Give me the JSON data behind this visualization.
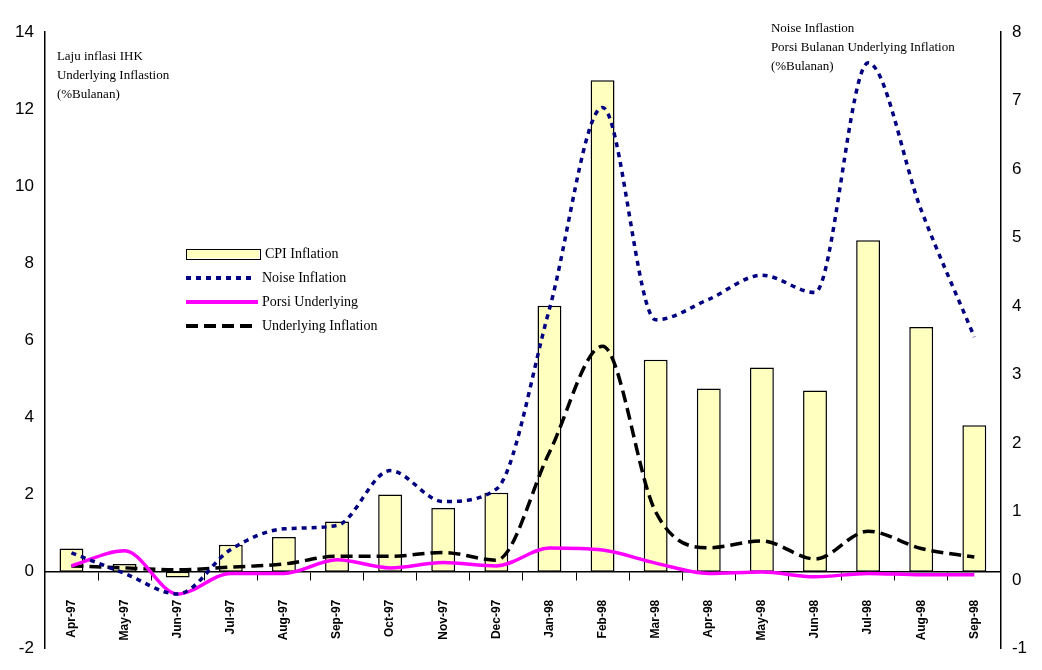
{
  "chart_data": {
    "type": "bar",
    "ylabel": "Laju inflasi IHK\nUnderlying Inflastion\n(%Bulanan)",
    "y2label": "Noise Inflastion\nPorsi Bulanan Underlying Inflation\n(%Bulanan)",
    "categories": [
      "Apr-97",
      "May-97",
      "Jun-97",
      "Jul-97",
      "Aug-97",
      "Sep-97",
      "Oct-97",
      "Nov-97",
      "Dec-97",
      "Jan-98",
      "Feb-98",
      "Mar-98",
      "Apr-98",
      "May-98",
      "Jun-98",
      "Jul-98",
      "Aug-98",
      "Sep-98"
    ],
    "series": [
      {
        "name": "CPI Inflation",
        "type": "bar",
        "color": "#ffffc0",
        "values": [
          0.6,
          0.2,
          -0.15,
          0.7,
          0.9,
          1.3,
          2.0,
          1.65,
          2.05,
          6.9,
          12.75,
          5.5,
          4.75,
          5.3,
          4.7,
          8.6,
          6.35,
          3.8
        ]
      },
      {
        "name": "Noise Inflation",
        "type": "line",
        "axis": "y2",
        "color": "#000080",
        "line_style": "dotted",
        "values": [
          0.4,
          0.1,
          -0.2,
          0.45,
          0.75,
          0.8,
          1.6,
          1.15,
          1.33,
          3.96,
          6.9,
          3.8,
          4.1,
          4.45,
          4.2,
          7.55,
          5.4,
          3.55
        ]
      },
      {
        "name": "Porsi Underlying",
        "type": "line",
        "axis": "y2",
        "color": "#ff00ff",
        "line_style": "solid",
        "values": [
          0.21,
          0.43,
          -0.2,
          0.1,
          0.1,
          0.3,
          0.18,
          0.26,
          0.21,
          0.47,
          0.44,
          0.25,
          0.1,
          0.12,
          0.05,
          0.1,
          0.08,
          0.08
        ]
      },
      {
        "name": "Underlying Inflation",
        "type": "line",
        "color": "#000000",
        "line_style": "dashed",
        "values": [
          0.15,
          0.1,
          0.05,
          0.12,
          0.2,
          0.4,
          0.4,
          0.5,
          0.3,
          3.1,
          5.85,
          1.55,
          0.62,
          0.8,
          0.33,
          1.05,
          0.6,
          0.38
        ]
      }
    ],
    "ylim": [
      -2,
      14
    ],
    "yticks": [
      -2,
      0,
      2,
      4,
      6,
      8,
      10,
      12,
      14
    ],
    "y2lim": [
      -1,
      8
    ],
    "y2ticks": [
      -1,
      0,
      1,
      2,
      3,
      4,
      5,
      6,
      7,
      8
    ],
    "grid": false,
    "legend": "center left",
    "marker": "none"
  }
}
